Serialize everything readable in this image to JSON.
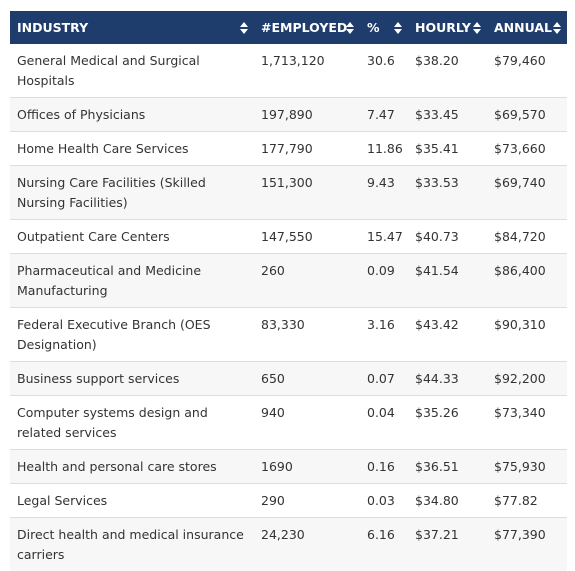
{
  "table": {
    "headers": {
      "industry": "INDUSTRY",
      "employed": "#EMPLOYED",
      "percent": "%",
      "hourly": "HOURLY",
      "annual": "ANNUAL"
    },
    "rows": [
      {
        "industry": "General Medical and Surgical Hospitals",
        "employed": "1,713,120",
        "percent": "30.6",
        "hourly": "$38.20",
        "annual": "$79,460"
      },
      {
        "industry": "Offices of Physicians",
        "employed": "197,890",
        "percent": "7.47",
        "hourly": "$33.45",
        "annual": "$69,570"
      },
      {
        "industry": "Home Health Care Services",
        "employed": "177,790",
        "percent": "11.86",
        "hourly": "$35.41",
        "annual": "$73,660"
      },
      {
        "industry": "Nursing Care Facilities (Skilled Nursing Facilities)",
        "employed": "151,300",
        "percent": "9.43",
        "hourly": "$33.53",
        "annual": "$69,740"
      },
      {
        "industry": "Outpatient Care Centers",
        "employed": "147,550",
        "percent": "15.47",
        "hourly": "$40.73",
        "annual": "$84,720"
      },
      {
        "industry": "Pharmaceutical and Medicine Manufacturing",
        "employed": "260",
        "percent": "0.09",
        "hourly": "$41.54",
        "annual": "$86,400"
      },
      {
        "industry": "Federal Executive Branch (OES Designation)",
        "employed": "83,330",
        "percent": "3.16",
        "hourly": "$43.42",
        "annual": "$90,310"
      },
      {
        "industry": "Business support services",
        "employed": "650",
        "percent": "0.07",
        "hourly": "$44.33",
        "annual": "$92,200"
      },
      {
        "industry": "Computer systems design and related services",
        "employed": "940",
        "percent": "0.04",
        "hourly": "$35.26",
        "annual": "$73,340"
      },
      {
        "industry": "Health and personal care stores",
        "employed": "1690",
        "percent": "0.16",
        "hourly": "$36.51",
        "annual": "$75,930"
      },
      {
        "industry": "Legal Services",
        "employed": "290",
        "percent": "0.03",
        "hourly": "$34.80",
        "annual": "$77.82"
      },
      {
        "industry": "Direct health and medical insurance carriers",
        "employed": "24,230",
        "percent": "6.16",
        "hourly": "$37.21",
        "annual": "$77,390"
      }
    ]
  },
  "icons": {
    "sort": "sort-icon"
  },
  "colors": {
    "header_bg": "#1e3c6c",
    "header_text": "#ffffff",
    "row_alt": "#f7f7f7",
    "row_border": "#dddddd",
    "body_text": "#333333"
  }
}
